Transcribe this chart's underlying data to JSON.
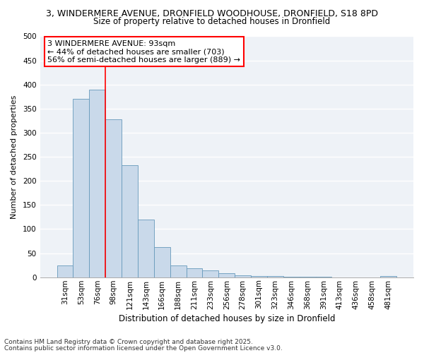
{
  "title_line1": "3, WINDERMERE AVENUE, DRONFIELD WOODHOUSE, DRONFIELD, S18 8PD",
  "title_line2": "Size of property relative to detached houses in Dronfield",
  "xlabel": "Distribution of detached houses by size in Dronfield",
  "ylabel": "Number of detached properties",
  "categories": [
    "31sqm",
    "53sqm",
    "76sqm",
    "98sqm",
    "121sqm",
    "143sqm",
    "166sqm",
    "188sqm",
    "211sqm",
    "233sqm",
    "256sqm",
    "278sqm",
    "301sqm",
    "323sqm",
    "346sqm",
    "368sqm",
    "391sqm",
    "413sqm",
    "436sqm",
    "458sqm",
    "481sqm"
  ],
  "values": [
    25,
    370,
    390,
    328,
    232,
    120,
    62,
    25,
    18,
    14,
    8,
    4,
    3,
    2,
    1,
    1,
    1,
    0,
    0,
    0,
    2
  ],
  "bar_color": "#c9d9ea",
  "bar_edge_color": "#6699bb",
  "red_line_index": 3,
  "annotation_text": "3 WINDERMERE AVENUE: 93sqm\n← 44% of detached houses are smaller (703)\n56% of semi-detached houses are larger (889) →",
  "annotation_box_facecolor": "white",
  "annotation_box_edgecolor": "red",
  "ylim": [
    0,
    500
  ],
  "yticks": [
    0,
    50,
    100,
    150,
    200,
    250,
    300,
    350,
    400,
    450,
    500
  ],
  "bg_color": "#eef2f7",
  "grid_color": "white",
  "footer_line1": "Contains HM Land Registry data © Crown copyright and database right 2025.",
  "footer_line2": "Contains public sector information licensed under the Open Government Licence v3.0.",
  "title_fontsize": 9.0,
  "subtitle_fontsize": 8.5,
  "tick_fontsize": 7.5,
  "xlabel_fontsize": 8.5,
  "ylabel_fontsize": 8.0,
  "annotation_fontsize": 8.0,
  "footer_fontsize": 6.5
}
